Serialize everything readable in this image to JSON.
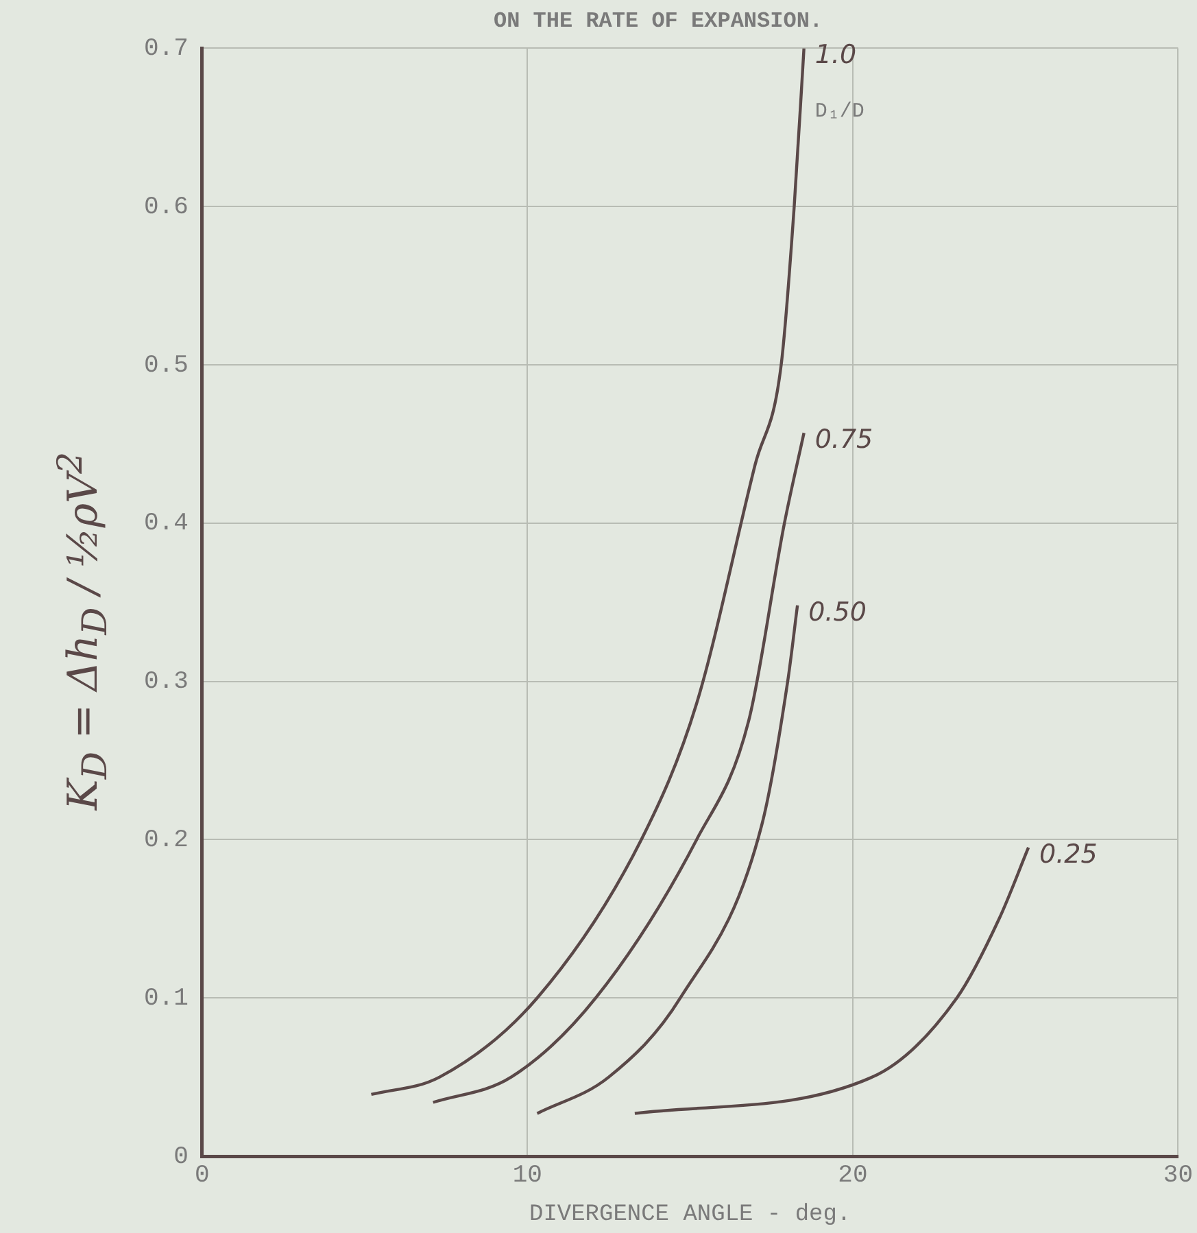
{
  "chart_data": {
    "type": "line",
    "title": "ON THE RATE OF EXPANSION.",
    "xlabel": "DIVERGENCE ANGLE - deg.",
    "ylabel": "K$_{D}$ = Δh$_{D}$ / ½ρV$^{2}$",
    "legend_title": "D₁/D",
    "xlim": [
      0,
      30
    ],
    "xticks": [
      0,
      10,
      20,
      30
    ],
    "ylim": [
      0,
      0.7
    ],
    "yticks": [
      0,
      0.1,
      0.2,
      0.3,
      0.4,
      0.5,
      0.6,
      0.7
    ],
    "grid": true,
    "legend": false,
    "marker": "none",
    "line_style": "solid",
    "series": [
      {
        "name": "1.0",
        "color": "#5a4848",
        "x": [
          5.2,
          7.3,
          10.3,
          13.5,
          15.2,
          17.0,
          17.8,
          18.2,
          18.5
        ],
        "values": [
          0.039,
          0.05,
          0.1,
          0.2,
          0.286,
          0.437,
          0.5,
          0.6,
          0.7
        ]
      },
      {
        "name": "0.75",
        "color": "#5a4848",
        "x": [
          7.1,
          9.5,
          12.1,
          15.2,
          16.8,
          17.9,
          18.5
        ],
        "values": [
          0.034,
          0.05,
          0.1,
          0.2,
          0.275,
          0.4,
          0.457
        ]
      },
      {
        "name": "0.50",
        "color": "#5a4848",
        "x": [
          10.3,
          12.5,
          14.7,
          17.2,
          18.0,
          18.3
        ],
        "values": [
          0.027,
          0.05,
          0.1,
          0.209,
          0.3,
          0.348
        ]
      },
      {
        "name": "0.25",
        "color": "#5a4848",
        "x": [
          13.3,
          20.6,
          23.2,
          24.5,
          25.4
        ],
        "values": [
          0.027,
          0.05,
          0.1,
          0.15,
          0.195
        ]
      }
    ]
  }
}
